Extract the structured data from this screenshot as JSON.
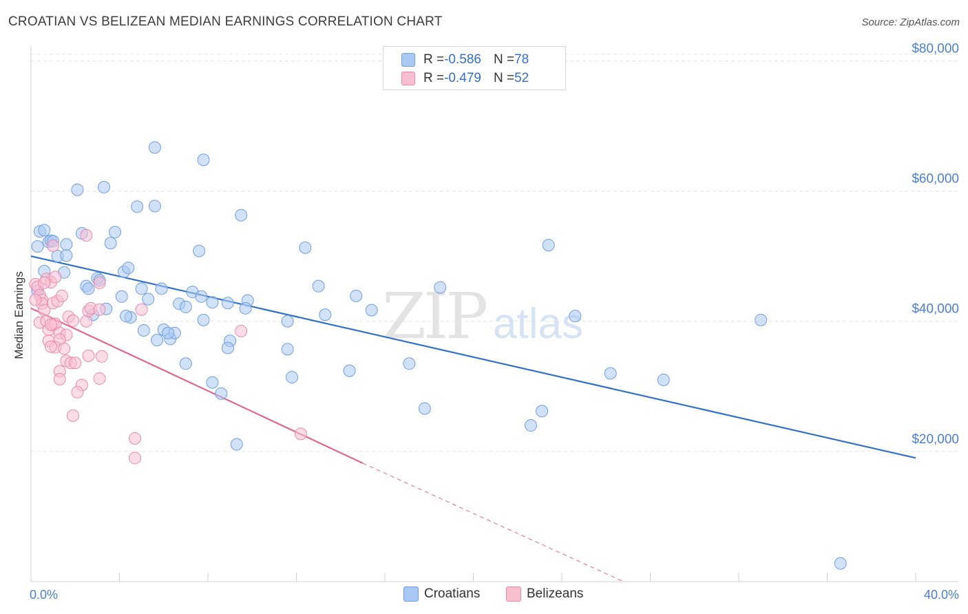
{
  "title": "CROATIAN VS BELIZEAN MEDIAN EARNINGS CORRELATION CHART",
  "source": "Source: ZipAtlas.com",
  "watermark": {
    "zip": "ZIP",
    "atlas": "atlas"
  },
  "legend": {
    "rows": [
      {
        "r_label": "R = ",
        "r_value": "-0.586",
        "n_label": "N = ",
        "n_value": "78",
        "color": "#a9c8f2",
        "border": "#6f9fdf"
      },
      {
        "r_label": "R = ",
        "r_value": "-0.479",
        "n_label": "N = ",
        "n_value": "52",
        "color": "#f9bfd1",
        "border": "#e98aab"
      }
    ]
  },
  "bottom_legend": [
    {
      "label": "Croatians",
      "color": "#a9c8f2",
      "border": "#6f9fdf"
    },
    {
      "label": "Belizeans",
      "color": "#f9bfd1",
      "border": "#e98aab"
    }
  ],
  "chart_data": {
    "type": "scatter",
    "title": "CROATIAN VS BELIZEAN MEDIAN EARNINGS CORRELATION CHART",
    "xlabel": "",
    "ylabel": "Median Earnings",
    "xlim": [
      0,
      40
    ],
    "ylim": [
      0,
      81000
    ],
    "x_tick_labels": [
      "0.0%",
      "40.0%"
    ],
    "y_ticks": [
      20000,
      40000,
      60000,
      80000
    ],
    "y_tick_labels": [
      "$20,000",
      "$40,000",
      "$60,000",
      "$80,000"
    ],
    "series": [
      {
        "name": "Croatians",
        "color": "#6f9fdf",
        "fill": "#a9c8f2",
        "trend_color": "#3370c9",
        "trend": {
          "x0": 0,
          "y0": 50000,
          "x1": 40,
          "y1": 19000
        },
        "points": [
          [
            0.3,
            51500
          ],
          [
            0.4,
            53800
          ],
          [
            0.6,
            54000
          ],
          [
            0.8,
            52200
          ],
          [
            0.9,
            52400
          ],
          [
            1.2,
            50000
          ],
          [
            1.6,
            51800
          ],
          [
            1.6,
            50100
          ],
          [
            2.3,
            53500
          ],
          [
            2.1,
            60200
          ],
          [
            3.3,
            60600
          ],
          [
            3.8,
            53700
          ],
          [
            3.6,
            52000
          ],
          [
            5.6,
            66700
          ],
          [
            7.8,
            64800
          ],
          [
            4.8,
            57600
          ],
          [
            5.6,
            57700
          ],
          [
            9.5,
            56300
          ],
          [
            7.6,
            50800
          ],
          [
            12.4,
            51300
          ],
          [
            23.4,
            51700
          ],
          [
            1.5,
            47500
          ],
          [
            2.5,
            45400
          ],
          [
            2.6,
            45000
          ],
          [
            3.0,
            46600
          ],
          [
            3.1,
            46300
          ],
          [
            4.2,
            47600
          ],
          [
            4.4,
            48200
          ],
          [
            5.0,
            45000
          ],
          [
            5.9,
            45000
          ],
          [
            7.3,
            44500
          ],
          [
            7.7,
            43800
          ],
          [
            8.2,
            42900
          ],
          [
            8.9,
            42800
          ],
          [
            9.8,
            43200
          ],
          [
            13.0,
            45400
          ],
          [
            14.7,
            43900
          ],
          [
            18.5,
            45200
          ],
          [
            4.1,
            43800
          ],
          [
            5.3,
            43400
          ],
          [
            6.7,
            42700
          ],
          [
            7.0,
            42200
          ],
          [
            9.7,
            42000
          ],
          [
            4.5,
            40600
          ],
          [
            4.3,
            40800
          ],
          [
            3.4,
            41900
          ],
          [
            2.8,
            41000
          ],
          [
            7.8,
            40200
          ],
          [
            11.6,
            40000
          ],
          [
            13.3,
            41000
          ],
          [
            15.4,
            41700
          ],
          [
            24.6,
            40800
          ],
          [
            33.0,
            40200
          ],
          [
            5.1,
            38600
          ],
          [
            5.7,
            37100
          ],
          [
            6.0,
            38700
          ],
          [
            6.3,
            37300
          ],
          [
            6.5,
            38200
          ],
          [
            6.2,
            38200
          ],
          [
            9.0,
            37000
          ],
          [
            8.9,
            35900
          ],
          [
            11.6,
            35700
          ],
          [
            7.0,
            33500
          ],
          [
            17.1,
            33500
          ],
          [
            14.4,
            32400
          ],
          [
            11.8,
            31400
          ],
          [
            26.2,
            32000
          ],
          [
            28.6,
            31000
          ],
          [
            8.2,
            30600
          ],
          [
            8.6,
            28900
          ],
          [
            17.8,
            26600
          ],
          [
            23.1,
            26200
          ],
          [
            22.6,
            24000
          ],
          [
            9.3,
            21100
          ],
          [
            36.6,
            2800
          ],
          [
            1.0,
            52300
          ],
          [
            0.6,
            47700
          ],
          [
            0.3,
            44700
          ]
        ]
      },
      {
        "name": "Belizeans",
        "color": "#e98aab",
        "fill": "#f9bfd1",
        "trend_color": "#e1668f",
        "trend": {
          "x0": 0,
          "y0": 42000,
          "x1": 15,
          "y1": 18200
        },
        "trend_dash_to": {
          "x": 26.8,
          "y": 0
        },
        "points": [
          [
            0.2,
            45700
          ],
          [
            0.3,
            45300
          ],
          [
            0.4,
            44000
          ],
          [
            0.5,
            43300
          ],
          [
            0.5,
            42700
          ],
          [
            0.6,
            41700
          ],
          [
            0.2,
            43300
          ],
          [
            0.7,
            46500
          ],
          [
            0.9,
            46000
          ],
          [
            1.1,
            46800
          ],
          [
            1.0,
            42800
          ],
          [
            1.2,
            43100
          ],
          [
            1.4,
            43900
          ],
          [
            1.7,
            40700
          ],
          [
            1.9,
            40100
          ],
          [
            2.5,
            40000
          ],
          [
            2.6,
            41600
          ],
          [
            2.7,
            42000
          ],
          [
            3.1,
            41800
          ],
          [
            3.1,
            45900
          ],
          [
            5.0,
            41800
          ],
          [
            2.5,
            53200
          ],
          [
            1.0,
            51600
          ],
          [
            0.4,
            39800
          ],
          [
            0.7,
            40000
          ],
          [
            0.8,
            38700
          ],
          [
            1.0,
            39400
          ],
          [
            1.1,
            39600
          ],
          [
            1.3,
            38200
          ],
          [
            1.6,
            37900
          ],
          [
            1.3,
            37200
          ],
          [
            0.8,
            37000
          ],
          [
            1.1,
            36000
          ],
          [
            0.9,
            36100
          ],
          [
            1.5,
            35800
          ],
          [
            1.6,
            33900
          ],
          [
            1.8,
            33600
          ],
          [
            2.0,
            33600
          ],
          [
            2.6,
            34700
          ],
          [
            3.2,
            34600
          ],
          [
            1.3,
            32300
          ],
          [
            1.3,
            31100
          ],
          [
            2.3,
            30200
          ],
          [
            3.1,
            31200
          ],
          [
            2.1,
            29100
          ],
          [
            0.9,
            39500
          ],
          [
            1.9,
            25500
          ],
          [
            4.7,
            22000
          ],
          [
            4.7,
            19000
          ],
          [
            9.5,
            38500
          ],
          [
            12.2,
            22700
          ],
          [
            0.6,
            45900
          ]
        ]
      }
    ]
  }
}
